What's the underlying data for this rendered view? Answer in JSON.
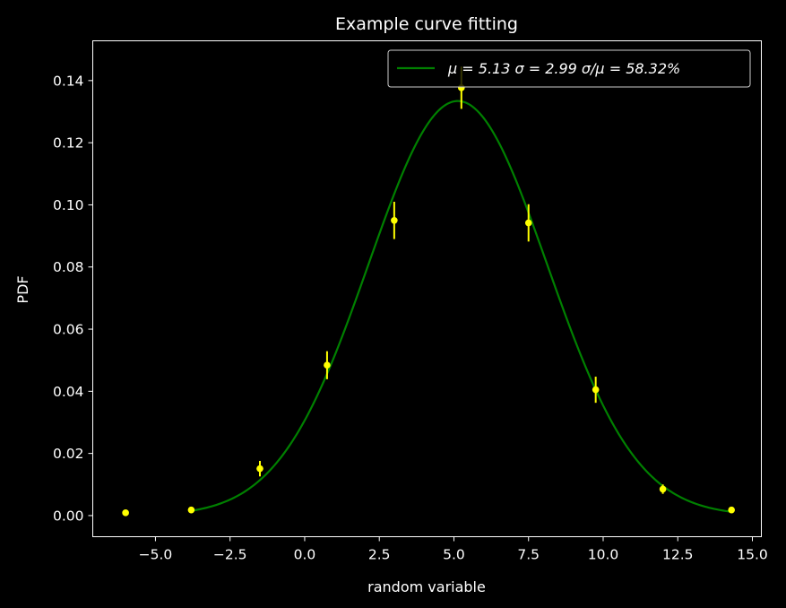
{
  "chart_data": {
    "type": "scatter",
    "title": "Example curve fitting",
    "xlabel": "random variable",
    "ylabel": "PDF",
    "xlim": [
      -7.1,
      15.3
    ],
    "ylim": [
      -0.0068,
      0.1528
    ],
    "xticks": [
      -5.0,
      -2.5,
      0.0,
      2.5,
      5.0,
      7.5,
      10.0,
      12.5,
      15.0
    ],
    "xtick_labels": [
      "−5.0",
      "−2.5",
      "0.0",
      "2.5",
      "5.0",
      "7.5",
      "10.0",
      "12.5",
      "15.0"
    ],
    "yticks": [
      0.0,
      0.02,
      0.04,
      0.06,
      0.08,
      0.1,
      0.12,
      0.14
    ],
    "ytick_labels": [
      "0.00",
      "0.02",
      "0.04",
      "0.06",
      "0.08",
      "0.10",
      "0.12",
      "0.14"
    ],
    "grid": false,
    "legend_position": "top-right",
    "points": {
      "color": "#ffff00",
      "x": [
        -6.0,
        -3.8,
        -1.5,
        0.75,
        3.0,
        5.25,
        7.5,
        9.75,
        12.0,
        14.3
      ],
      "y": [
        0.0009,
        0.0018,
        0.0151,
        0.0484,
        0.095,
        0.1377,
        0.0942,
        0.0405,
        0.0085,
        0.0018
      ],
      "yerr": [
        0.0,
        0.0,
        0.0025,
        0.0045,
        0.006,
        0.0068,
        0.006,
        0.0042,
        0.0015,
        0.0
      ]
    },
    "fit": {
      "color": "#008000",
      "type": "gaussian",
      "mu": 5.13,
      "sigma": 2.99,
      "x_range": [
        -3.8,
        14.3
      ],
      "legend_label": "μ = 5.13  σ = 2.99  σ/μ = 58.32%"
    },
    "style": {
      "background": "#000000",
      "axes_color": "#ffffff",
      "legend_background": "#000000",
      "legend_border": "#cccccc"
    }
  }
}
